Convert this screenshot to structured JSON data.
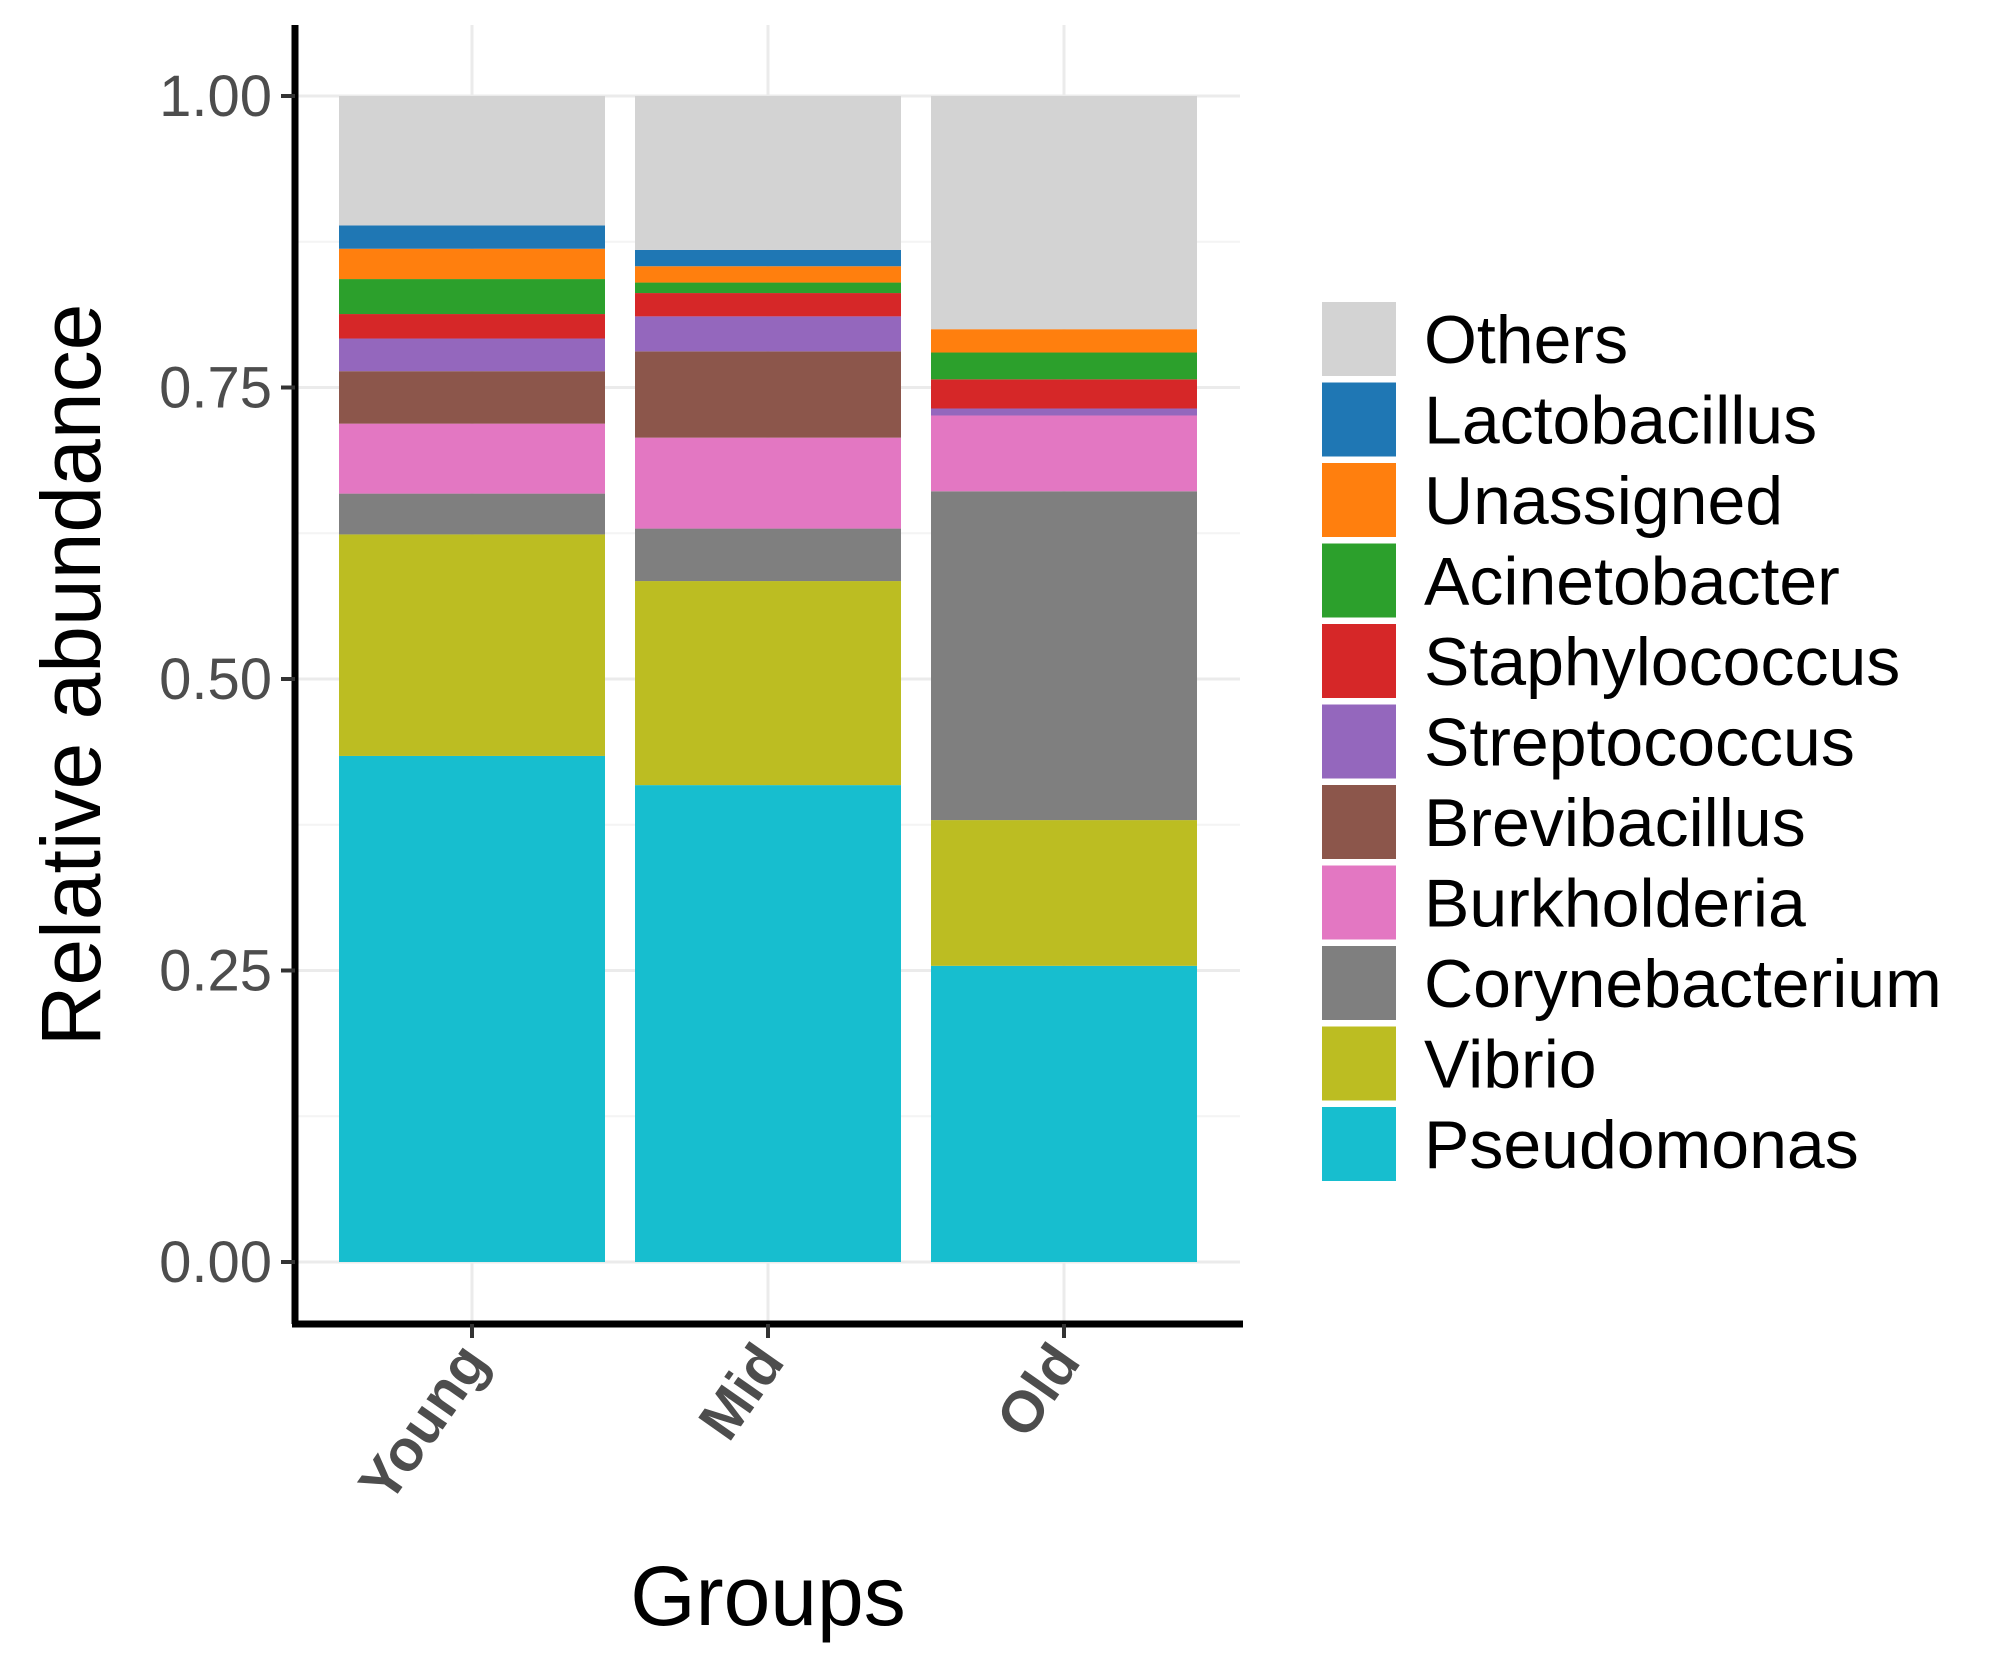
{
  "chart_data": {
    "type": "bar",
    "stacked": true,
    "xlabel": "Groups",
    "ylabel": "Relative abundance",
    "ylim": [
      0,
      1.06
    ],
    "yticks": [
      0.0,
      0.25,
      0.5,
      0.75,
      1.0
    ],
    "ytick_labels": [
      "0.00",
      "0.25",
      "0.50",
      "0.75",
      "1.00"
    ],
    "categories": [
      "Young",
      "Mid",
      "Old"
    ],
    "grid": true,
    "legend_position": "right",
    "series": [
      {
        "name": "Pseudomonas",
        "color": "#17becf",
        "values": [
          0.434,
          0.409,
          0.254
        ]
      },
      {
        "name": "Vibrio",
        "color": "#bcbd22",
        "values": [
          0.19,
          0.175,
          0.125
        ]
      },
      {
        "name": "Corynebacterium",
        "color": "#7f7f7f",
        "values": [
          0.035,
          0.045,
          0.282
        ]
      },
      {
        "name": "Burkholderia",
        "color": "#e377c2",
        "values": [
          0.06,
          0.078,
          0.065
        ]
      },
      {
        "name": "Brevibacillus",
        "color": "#8c564b",
        "values": [
          0.045,
          0.074,
          0.0
        ]
      },
      {
        "name": "Streptococcus",
        "color": "#9467bd",
        "values": [
          0.028,
          0.03,
          0.006
        ]
      },
      {
        "name": "Staphylococcus",
        "color": "#d62728",
        "values": [
          0.021,
          0.02,
          0.025
        ]
      },
      {
        "name": "Acinetobacter",
        "color": "#2ca02c",
        "values": [
          0.03,
          0.009,
          0.023
        ]
      },
      {
        "name": "Unassigned",
        "color": "#ff7f0e",
        "values": [
          0.026,
          0.014,
          0.02
        ]
      },
      {
        "name": "Lactobacillus",
        "color": "#1f77b4",
        "values": [
          0.02,
          0.014,
          0.0
        ]
      },
      {
        "name": "Others",
        "color": "#d3d3d3",
        "values": [
          0.111,
          0.132,
          0.2
        ]
      }
    ],
    "legend_order": [
      "Others",
      "Lactobacillus",
      "Unassigned",
      "Acinetobacter",
      "Staphylococcus",
      "Streptococcus",
      "Brevibacillus",
      "Burkholderia",
      "Corynebacterium",
      "Vibrio",
      "Pseudomonas"
    ]
  }
}
